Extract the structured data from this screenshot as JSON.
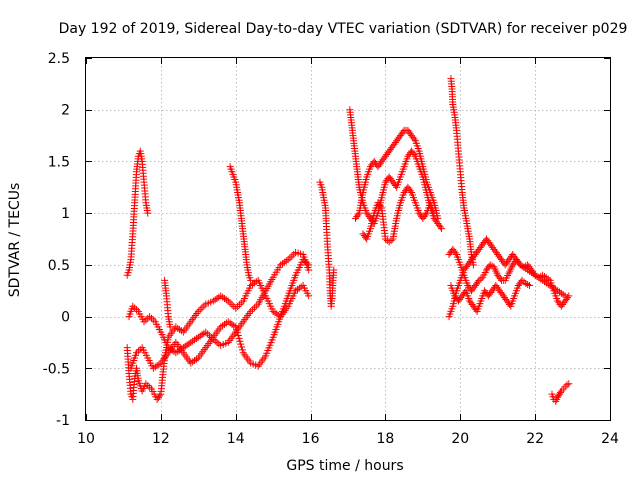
{
  "chart_data": {
    "type": "scatter",
    "title": "Day 192 of 2019, Sidereal Day-to-day VTEC variation (SDTVAR) for receiver p029",
    "xlabel": "GPS time / hours",
    "ylabel": "SDTVAR / TECUs",
    "xlim": [
      10,
      24
    ],
    "ylim": [
      -1,
      2.5
    ],
    "xticks": [
      "10",
      "12",
      "14",
      "16",
      "18",
      "20",
      "22",
      "24"
    ],
    "yticks": [
      "-1",
      "-0.5",
      "0",
      "0.5",
      "1",
      "1.5",
      "2",
      "2.5"
    ],
    "grid": true,
    "marker": "+",
    "marker_color": "#ff0000",
    "series": [
      {
        "name": "s1",
        "points": [
          [
            11.1,
            -0.3
          ],
          [
            11.15,
            -0.55
          ],
          [
            11.2,
            -0.75
          ],
          [
            11.25,
            -0.8
          ],
          [
            11.3,
            -0.6
          ],
          [
            11.35,
            -0.5
          ],
          [
            11.4,
            -0.62
          ],
          [
            11.5,
            -0.72
          ],
          [
            11.6,
            -0.65
          ],
          [
            11.75,
            -0.7
          ],
          [
            11.9,
            -0.8
          ],
          [
            12.0,
            -0.75
          ],
          [
            12.1,
            -0.4
          ],
          [
            12.2,
            -0.2
          ],
          [
            12.4,
            -0.1
          ],
          [
            12.6,
            -0.15
          ],
          [
            12.8,
            -0.05
          ],
          [
            13.0,
            0.05
          ],
          [
            13.2,
            0.12
          ],
          [
            13.4,
            0.15
          ],
          [
            13.6,
            0.2
          ],
          [
            13.8,
            0.15
          ],
          [
            14.0,
            0.08
          ],
          [
            14.2,
            0.15
          ],
          [
            14.4,
            0.3
          ],
          [
            14.6,
            0.35
          ],
          [
            14.8,
            0.2
          ],
          [
            15.0,
            0.05
          ],
          [
            15.2,
            0.0
          ],
          [
            15.4,
            0.1
          ],
          [
            15.6,
            0.25
          ],
          [
            15.8,
            0.3
          ],
          [
            15.95,
            0.2
          ]
        ]
      },
      {
        "name": "s2",
        "points": [
          [
            11.15,
            0.0
          ],
          [
            11.25,
            0.1
          ],
          [
            11.4,
            0.05
          ],
          [
            11.55,
            -0.05
          ],
          [
            11.7,
            0.0
          ],
          [
            11.85,
            -0.05
          ],
          [
            12.0,
            -0.15
          ],
          [
            12.2,
            -0.3
          ],
          [
            12.4,
            -0.35
          ],
          [
            12.6,
            -0.3
          ],
          [
            12.8,
            -0.25
          ],
          [
            13.0,
            -0.2
          ],
          [
            13.2,
            -0.15
          ],
          [
            13.4,
            -0.22
          ],
          [
            13.6,
            -0.28
          ],
          [
            13.8,
            -0.25
          ],
          [
            14.0,
            -0.15
          ],
          [
            14.2,
            -0.05
          ],
          [
            14.4,
            0.05
          ],
          [
            14.6,
            0.12
          ],
          [
            14.8,
            0.25
          ],
          [
            15.0,
            0.38
          ],
          [
            15.2,
            0.5
          ],
          [
            15.4,
            0.55
          ],
          [
            15.6,
            0.62
          ],
          [
            15.8,
            0.6
          ],
          [
            15.95,
            0.45
          ]
        ]
      },
      {
        "name": "s3",
        "points": [
          [
            11.2,
            -0.5
          ],
          [
            11.35,
            -0.35
          ],
          [
            11.5,
            -0.3
          ],
          [
            11.65,
            -0.4
          ],
          [
            11.8,
            -0.5
          ],
          [
            12.0,
            -0.45
          ],
          [
            12.2,
            -0.35
          ],
          [
            12.4,
            -0.25
          ],
          [
            12.6,
            -0.35
          ],
          [
            12.8,
            -0.45
          ],
          [
            13.0,
            -0.4
          ],
          [
            13.2,
            -0.3
          ],
          [
            13.4,
            -0.2
          ],
          [
            13.6,
            -0.1
          ],
          [
            13.8,
            -0.05
          ],
          [
            14.0,
            -0.1
          ],
          [
            14.2,
            -0.35
          ],
          [
            14.4,
            -0.45
          ],
          [
            14.6,
            -0.48
          ],
          [
            14.8,
            -0.38
          ],
          [
            15.0,
            -0.2
          ],
          [
            15.2,
            0.0
          ],
          [
            15.4,
            0.2
          ],
          [
            15.6,
            0.4
          ],
          [
            15.8,
            0.55
          ],
          [
            15.95,
            0.5
          ]
        ]
      },
      {
        "name": "s4",
        "points": [
          [
            11.1,
            0.4
          ],
          [
            11.15,
            0.45
          ],
          [
            11.2,
            0.55
          ],
          [
            11.25,
            0.8
          ],
          [
            11.3,
            1.1
          ],
          [
            11.35,
            1.4
          ],
          [
            11.4,
            1.55
          ],
          [
            11.45,
            1.6
          ],
          [
            11.5,
            1.5
          ],
          [
            11.55,
            1.3
          ],
          [
            11.6,
            1.1
          ],
          [
            11.65,
            1.0
          ]
        ]
      },
      {
        "name": "s5",
        "points": [
          [
            12.1,
            0.35
          ],
          [
            12.15,
            0.2
          ],
          [
            12.2,
            0.0
          ],
          [
            12.25,
            -0.1
          ]
        ]
      },
      {
        "name": "s6",
        "points": [
          [
            13.85,
            1.45
          ],
          [
            13.9,
            1.4
          ],
          [
            13.95,
            1.35
          ],
          [
            14.0,
            1.3
          ],
          [
            14.05,
            1.2
          ],
          [
            14.1,
            1.1
          ],
          [
            14.15,
            0.95
          ],
          [
            14.2,
            0.8
          ],
          [
            14.25,
            0.65
          ],
          [
            14.3,
            0.5
          ],
          [
            14.35,
            0.4
          ],
          [
            14.4,
            0.35
          ]
        ]
      },
      {
        "name": "s7",
        "points": [
          [
            16.25,
            1.3
          ],
          [
            16.3,
            1.25
          ],
          [
            16.35,
            1.15
          ],
          [
            16.4,
            1.05
          ],
          [
            16.42,
            0.9
          ],
          [
            16.45,
            0.7
          ],
          [
            16.5,
            0.45
          ],
          [
            16.52,
            0.25
          ],
          [
            16.55,
            0.1
          ],
          [
            16.58,
            0.2
          ],
          [
            16.6,
            0.35
          ],
          [
            16.62,
            0.45
          ]
        ]
      },
      {
        "name": "s8",
        "points": [
          [
            17.05,
            2.0
          ],
          [
            17.1,
            1.85
          ],
          [
            17.15,
            1.7
          ],
          [
            17.2,
            1.55
          ],
          [
            17.25,
            1.4
          ],
          [
            17.3,
            1.25
          ],
          [
            17.4,
            1.1
          ],
          [
            17.5,
            1.0
          ],
          [
            17.6,
            0.95
          ],
          [
            17.7,
            0.9
          ],
          [
            17.8,
            1.0
          ],
          [
            17.9,
            1.15
          ],
          [
            18.0,
            1.3
          ],
          [
            18.1,
            1.35
          ],
          [
            18.2,
            1.3
          ],
          [
            18.3,
            1.25
          ],
          [
            18.4,
            1.35
          ],
          [
            18.5,
            1.45
          ],
          [
            18.6,
            1.55
          ],
          [
            18.7,
            1.6
          ],
          [
            18.8,
            1.55
          ],
          [
            18.9,
            1.45
          ],
          [
            19.0,
            1.35
          ],
          [
            19.1,
            1.2
          ],
          [
            19.2,
            1.05
          ],
          [
            19.3,
            0.95
          ],
          [
            19.4,
            0.9
          ],
          [
            19.5,
            0.85
          ]
        ]
      },
      {
        "name": "s9",
        "points": [
          [
            17.2,
            0.95
          ],
          [
            17.3,
            1.0
          ],
          [
            17.4,
            1.2
          ],
          [
            17.5,
            1.35
          ],
          [
            17.6,
            1.45
          ],
          [
            17.7,
            1.5
          ],
          [
            17.8,
            1.45
          ],
          [
            17.9,
            1.5
          ],
          [
            18.0,
            1.55
          ],
          [
            18.1,
            1.6
          ],
          [
            18.2,
            1.65
          ],
          [
            18.3,
            1.7
          ],
          [
            18.4,
            1.75
          ],
          [
            18.5,
            1.8
          ],
          [
            18.6,
            1.8
          ],
          [
            18.7,
            1.75
          ],
          [
            18.8,
            1.7
          ],
          [
            18.9,
            1.6
          ],
          [
            19.0,
            1.45
          ],
          [
            19.1,
            1.3
          ],
          [
            19.2,
            1.2
          ],
          [
            19.3,
            1.1
          ],
          [
            19.4,
            0.95
          ]
        ]
      },
      {
        "name": "s10",
        "points": [
          [
            17.4,
            0.8
          ],
          [
            17.5,
            0.75
          ],
          [
            17.6,
            0.85
          ],
          [
            17.7,
            1.0
          ],
          [
            17.8,
            1.1
          ],
          [
            17.9,
            1.05
          ],
          [
            18.0,
            0.75
          ],
          [
            18.1,
            0.72
          ],
          [
            18.2,
            0.75
          ],
          [
            18.3,
            0.95
          ],
          [
            18.4,
            1.1
          ],
          [
            18.5,
            1.2
          ],
          [
            18.6,
            1.25
          ],
          [
            18.7,
            1.2
          ],
          [
            18.8,
            1.1
          ],
          [
            18.9,
            1.0
          ],
          [
            19.0,
            0.95
          ],
          [
            19.1,
            1.0
          ],
          [
            19.2,
            1.1
          ],
          [
            19.3,
            1.0
          ]
        ]
      },
      {
        "name": "s11",
        "points": [
          [
            19.75,
            2.3
          ],
          [
            19.78,
            2.2
          ],
          [
            19.8,
            2.05
          ],
          [
            19.85,
            1.95
          ],
          [
            19.9,
            1.8
          ],
          [
            19.95,
            1.6
          ],
          [
            20.0,
            1.4
          ],
          [
            20.05,
            1.2
          ],
          [
            20.1,
            1.05
          ],
          [
            20.15,
            0.95
          ],
          [
            20.2,
            0.85
          ],
          [
            20.25,
            0.75
          ],
          [
            20.3,
            0.6
          ],
          [
            20.35,
            0.5
          ]
        ]
      },
      {
        "name": "s12",
        "points": [
          [
            19.7,
            0.0
          ],
          [
            19.8,
            0.1
          ],
          [
            19.9,
            0.25
          ],
          [
            20.0,
            0.35
          ],
          [
            20.1,
            0.45
          ],
          [
            20.2,
            0.5
          ],
          [
            20.3,
            0.55
          ],
          [
            20.4,
            0.6
          ],
          [
            20.5,
            0.65
          ],
          [
            20.6,
            0.7
          ],
          [
            20.7,
            0.75
          ],
          [
            20.8,
            0.7
          ],
          [
            20.9,
            0.65
          ],
          [
            21.0,
            0.6
          ],
          [
            21.1,
            0.55
          ],
          [
            21.2,
            0.5
          ],
          [
            21.3,
            0.55
          ],
          [
            21.4,
            0.6
          ],
          [
            21.5,
            0.55
          ],
          [
            21.6,
            0.5
          ],
          [
            21.8,
            0.45
          ],
          [
            22.0,
            0.4
          ],
          [
            22.2,
            0.35
          ],
          [
            22.4,
            0.3
          ],
          [
            22.6,
            0.25
          ],
          [
            22.8,
            0.2
          ]
        ]
      },
      {
        "name": "s13",
        "points": [
          [
            19.7,
            0.6
          ],
          [
            19.8,
            0.65
          ],
          [
            19.9,
            0.6
          ],
          [
            20.0,
            0.5
          ],
          [
            20.1,
            0.4
          ],
          [
            20.2,
            0.3
          ],
          [
            20.3,
            0.25
          ],
          [
            20.4,
            0.3
          ],
          [
            20.5,
            0.35
          ],
          [
            20.6,
            0.38
          ],
          [
            20.7,
            0.45
          ],
          [
            20.8,
            0.5
          ],
          [
            20.9,
            0.48
          ],
          [
            21.0,
            0.4
          ],
          [
            21.1,
            0.35
          ],
          [
            21.2,
            0.35
          ],
          [
            21.3,
            0.42
          ],
          [
            21.4,
            0.5
          ],
          [
            21.5,
            0.55
          ],
          [
            21.6,
            0.5
          ],
          [
            21.7,
            0.48
          ],
          [
            21.8,
            0.5
          ],
          [
            21.9,
            0.45
          ],
          [
            22.0,
            0.4
          ],
          [
            22.1,
            0.38
          ],
          [
            22.2,
            0.4
          ],
          [
            22.4,
            0.35
          ],
          [
            22.5,
            0.25
          ],
          [
            22.6,
            0.15
          ],
          [
            22.7,
            0.1
          ],
          [
            22.8,
            0.15
          ],
          [
            22.9,
            0.2
          ]
        ]
      },
      {
        "name": "s14",
        "points": [
          [
            19.75,
            0.3
          ],
          [
            19.85,
            0.2
          ],
          [
            19.95,
            0.15
          ],
          [
            20.05,
            0.2
          ],
          [
            20.15,
            0.25
          ],
          [
            20.25,
            0.15
          ],
          [
            20.35,
            0.1
          ],
          [
            20.45,
            0.05
          ],
          [
            20.55,
            0.15
          ],
          [
            20.65,
            0.25
          ],
          [
            20.75,
            0.2
          ],
          [
            20.85,
            0.25
          ],
          [
            20.95,
            0.3
          ],
          [
            21.05,
            0.25
          ],
          [
            21.15,
            0.2
          ],
          [
            21.25,
            0.15
          ],
          [
            21.35,
            0.1
          ],
          [
            21.45,
            0.2
          ],
          [
            21.55,
            0.3
          ],
          [
            21.65,
            0.35
          ],
          [
            21.75,
            0.32
          ],
          [
            21.85,
            0.3
          ]
        ]
      },
      {
        "name": "s15",
        "points": [
          [
            22.45,
            -0.75
          ],
          [
            22.5,
            -0.8
          ],
          [
            22.55,
            -0.82
          ],
          [
            22.6,
            -0.78
          ],
          [
            22.65,
            -0.75
          ],
          [
            22.7,
            -0.72
          ],
          [
            22.75,
            -0.7
          ],
          [
            22.8,
            -0.68
          ],
          [
            22.85,
            -0.66
          ],
          [
            22.9,
            -0.65
          ]
        ]
      }
    ]
  }
}
